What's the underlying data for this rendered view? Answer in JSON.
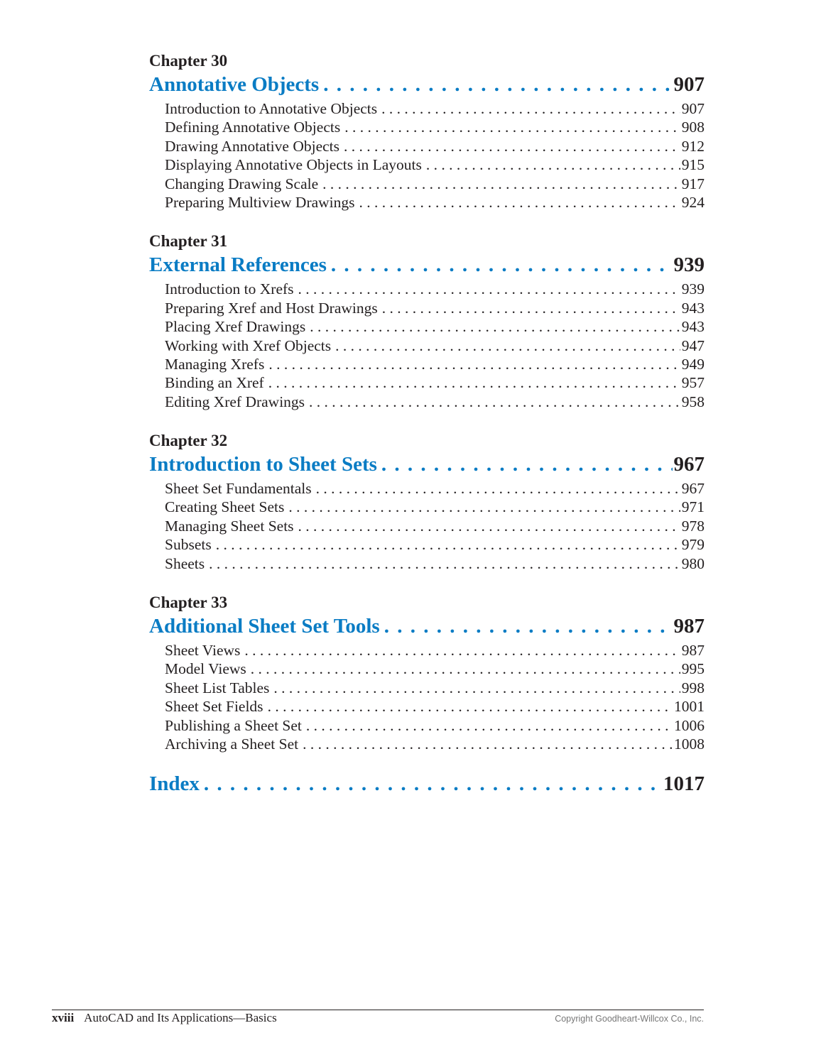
{
  "accent_color": "#0a7cc4",
  "chapters": [
    {
      "label": "Chapter 30",
      "title": "Annotative Objects",
      "page": "907",
      "entries": [
        {
          "title": "Introduction to Annotative Objects",
          "page": "907"
        },
        {
          "title": "Defining Annotative Objects",
          "page": "908"
        },
        {
          "title": "Drawing Annotative Objects",
          "page": "912"
        },
        {
          "title": "Displaying Annotative Objects in Layouts",
          "page": "915"
        },
        {
          "title": "Changing Drawing Scale",
          "page": "917"
        },
        {
          "title": "Preparing Multiview Drawings",
          "page": "924"
        }
      ]
    },
    {
      "label": "Chapter 31",
      "title": "External References",
      "page": "939",
      "entries": [
        {
          "title": "Introduction to Xrefs",
          "page": "939"
        },
        {
          "title": "Preparing Xref and Host Drawings",
          "page": "943"
        },
        {
          "title": "Placing Xref Drawings",
          "page": "943"
        },
        {
          "title": "Working with Xref Objects",
          "page": "947"
        },
        {
          "title": "Managing Xrefs",
          "page": "949"
        },
        {
          "title": "Binding an Xref",
          "page": "957"
        },
        {
          "title": "Editing Xref Drawings",
          "page": "958"
        }
      ]
    },
    {
      "label": "Chapter 32",
      "title": "Introduction to Sheet Sets",
      "page": "967",
      "entries": [
        {
          "title": "Sheet Set Fundamentals",
          "page": "967"
        },
        {
          "title": "Creating Sheet Sets",
          "page": "971"
        },
        {
          "title": "Managing Sheet Sets",
          "page": "978"
        },
        {
          "title": "Subsets",
          "page": "979"
        },
        {
          "title": "Sheets",
          "page": "980"
        }
      ]
    },
    {
      "label": "Chapter 33",
      "title": "Additional Sheet Set Tools",
      "page": "987",
      "entries": [
        {
          "title": "Sheet Views",
          "page": "987"
        },
        {
          "title": "Model Views",
          "page": "995"
        },
        {
          "title": "Sheet List Tables",
          "page": "998"
        },
        {
          "title": "Sheet Set Fields",
          "page": "1001"
        },
        {
          "title": "Publishing a Sheet Set",
          "page": "1006"
        },
        {
          "title": "Archiving a Sheet Set",
          "page": "1008"
        }
      ]
    }
  ],
  "index": {
    "title": "Index",
    "page": "1017"
  },
  "footer": {
    "folio": "xviii",
    "book_title": "AutoCAD and Its Applications—Basics",
    "copyright": "Copyright Goodheart-Willcox Co., Inc."
  }
}
